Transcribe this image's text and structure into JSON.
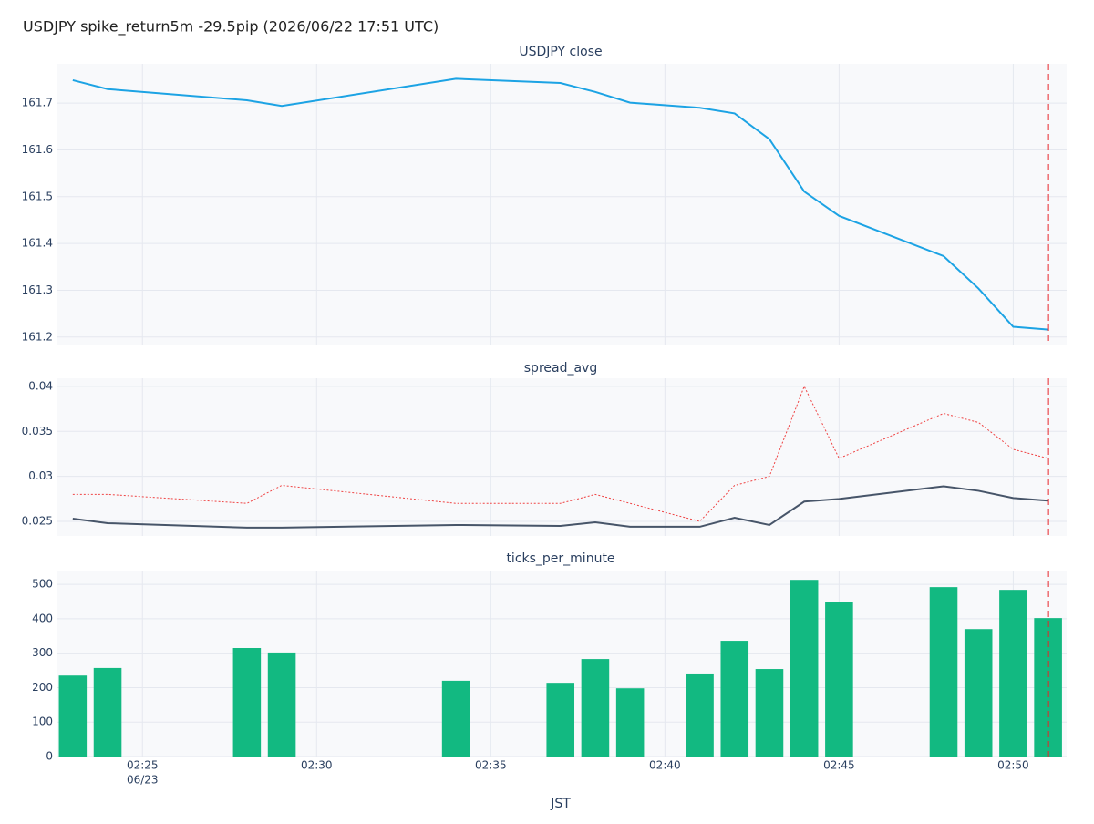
{
  "chart_data": {
    "type": "subplots",
    "title": "USDJPY spike_return5m -29.5pip (2026/06/22 17:51 UTC)",
    "xlabel": "JST",
    "x": [
      "02:23",
      "02:24",
      "02:28",
      "02:29",
      "02:34",
      "02:37",
      "02:38",
      "02:39",
      "02:41",
      "02:42",
      "02:43",
      "02:44",
      "02:45",
      "02:48",
      "02:49",
      "02:50",
      "02:51"
    ],
    "xlim": [
      "02:22:32",
      "02:51:32"
    ],
    "xticks": [
      "02:25",
      "02:30",
      "02:35",
      "02:40",
      "02:45",
      "02:50"
    ],
    "x_date_label": "06/23",
    "event_x": "02:51",
    "event_color": "#e8262b",
    "grid": true,
    "panels": [
      {
        "type": "line",
        "title": "USDJPY close",
        "ylim": [
          161.184,
          161.784
        ],
        "yticks": [
          {
            "value": 161.2,
            "label": "161.2"
          },
          {
            "value": 161.3,
            "label": "161.3"
          },
          {
            "value": 161.4,
            "label": "161.4"
          },
          {
            "value": 161.5,
            "label": "161.5"
          },
          {
            "value": 161.6,
            "label": "161.6"
          },
          {
            "value": 161.7,
            "label": "161.7"
          }
        ],
        "series": [
          {
            "color": "#1ca3e4",
            "dash": false,
            "values": [
              161.749,
              161.73,
              161.706,
              161.694,
              161.752,
              161.743,
              161.724,
              161.701,
              161.69,
              161.678,
              161.623,
              161.511,
              161.459,
              161.373,
              161.304,
              161.222,
              161.216
            ]
          }
        ]
      },
      {
        "type": "line",
        "title": "spread_avg",
        "ylim": [
          0.02338,
          0.0409
        ],
        "yticks": [
          0.025,
          0.03,
          0.035,
          0.04
        ],
        "series": [
          {
            "color": "#475569",
            "dash": false,
            "values": [
              0.0253,
              0.0248,
              0.0243,
              0.0243,
              0.0246,
              0.0245,
              0.0249,
              0.0244,
              0.0244,
              0.0254,
              0.0246,
              0.0272,
              0.0275,
              0.0289,
              0.0284,
              0.0276,
              0.0273
            ]
          },
          {
            "color": "#ef4444",
            "dash": true,
            "values": [
              0.028,
              0.028,
              0.027,
              0.029,
              0.027,
              0.027,
              0.028,
              0.027,
              0.025,
              0.029,
              0.03,
              0.04,
              0.032,
              0.037,
              0.036,
              0.033,
              0.032
            ]
          }
        ]
      },
      {
        "type": "bar",
        "title": "ticks_per_minute",
        "ylim": [
          0,
          540
        ],
        "yticks": [
          0,
          100,
          200,
          300,
          400,
          500
        ],
        "color": "#12b981",
        "values": [
          235,
          257,
          315,
          302,
          220,
          214,
          283,
          198,
          241,
          336,
          254,
          513,
          450,
          492,
          370,
          484,
          402
        ]
      }
    ]
  }
}
